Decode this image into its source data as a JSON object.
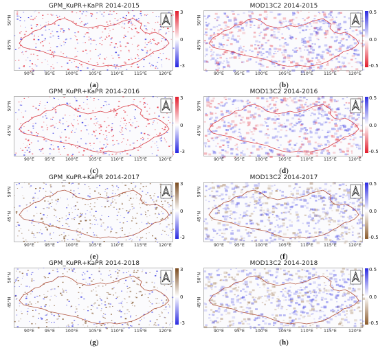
{
  "panels": [
    {
      "title": "GPM_KuPR+KaPR 2014-2015",
      "label": "a",
      "scale": [
        "3",
        "0",
        "-3"
      ],
      "palette": "precip_a"
    },
    {
      "title": "MOD13C2 2014-2015",
      "label": "b",
      "scale": [
        "0.5",
        "0.0",
        "-0.5"
      ],
      "palette": "ndvi_red"
    },
    {
      "title": "GPM_KuPR+KaPR 2014-2016",
      "label": "c",
      "scale": [
        "3",
        "0",
        "-3"
      ],
      "palette": "precip_a"
    },
    {
      "title": "MOD13C2 2014-2016",
      "label": "d",
      "scale": [
        "0.5",
        "0.0",
        "-0.5"
      ],
      "palette": "ndvi_red"
    },
    {
      "title": "GPM_KuPR+KaPR 2014-2017",
      "label": "e",
      "scale": [
        "3",
        "0",
        "-3"
      ],
      "palette": "precip_brown"
    },
    {
      "title": "MOD13C2 2014-2017",
      "label": "f",
      "scale": [
        "0.5",
        "0.0",
        "-0.5"
      ],
      "palette": "ndvi_brown"
    },
    {
      "title": "GPM_KuPR+KaPR 2014-2018",
      "label": "g",
      "scale": [
        "3",
        "0",
        "-3"
      ],
      "palette": "precip_brown"
    },
    {
      "title": "MOD13C2 2014-2018",
      "label": "h",
      "scale": [
        "0.5",
        "0.0",
        "-0.5"
      ],
      "palette": "ndvi_brown"
    }
  ],
  "x_ticks": [
    "90°E",
    "95°E",
    "100°E",
    "105°E",
    "110°E",
    "115°E",
    "120°E"
  ],
  "y_ticks": [
    "50°N",
    "45°N"
  ],
  "colors": {
    "border": "#d9424a",
    "positive_red": "#e0303a",
    "negative_blue": "#3a3ae0",
    "positive_brown": "#9a6a3a"
  },
  "north_arrow_icon": "north-arrow-icon"
}
